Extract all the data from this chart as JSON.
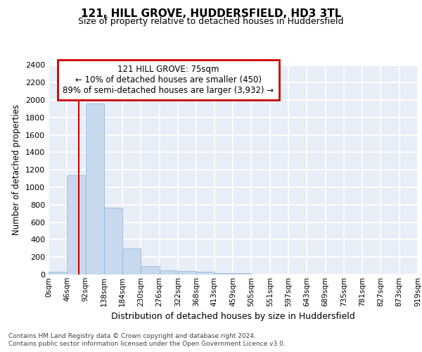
{
  "title": "121, HILL GROVE, HUDDERSFIELD, HD3 3TL",
  "subtitle": "Size of property relative to detached houses in Huddersfield",
  "xlabel": "Distribution of detached houses by size in Huddersfield",
  "ylabel": "Number of detached properties",
  "bar_color": "#c8d9ee",
  "bar_edge_color": "#8ab0d4",
  "background_color": "#e8eef8",
  "grid_color": "#ffffff",
  "red_line_x": 75,
  "annotation_text_line1": "121 HILL GROVE: 75sqm",
  "annotation_text_line2": "← 10% of detached houses are smaller (450)",
  "annotation_text_line3": "89% of semi-detached houses are larger (3,932) →",
  "annotation_box_color": "#ffffff",
  "annotation_box_edge": "#cc0000",
  "footer_line1": "Contains HM Land Registry data © Crown copyright and database right 2024.",
  "footer_line2": "Contains public sector information licensed under the Open Government Licence v3.0.",
  "bin_edges": [
    0,
    46,
    92,
    138,
    184,
    230,
    276,
    322,
    368,
    413,
    459,
    505,
    551,
    597,
    643,
    689,
    735,
    781,
    827,
    873,
    919
  ],
  "bar_heights": [
    35,
    1140,
    1960,
    770,
    300,
    100,
    45,
    40,
    35,
    20,
    20,
    0,
    0,
    0,
    0,
    0,
    0,
    0,
    0,
    0
  ],
  "ylim": [
    0,
    2400
  ],
  "yticks": [
    0,
    200,
    400,
    600,
    800,
    1000,
    1200,
    1400,
    1600,
    1800,
    2000,
    2200,
    2400
  ],
  "xlim": [
    0,
    919
  ],
  "xtick_labels": [
    "0sqm",
    "46sqm",
    "92sqm",
    "138sqm",
    "184sqm",
    "230sqm",
    "276sqm",
    "322sqm",
    "368sqm",
    "413sqm",
    "459sqm",
    "505sqm",
    "551sqm",
    "597sqm",
    "643sqm",
    "689sqm",
    "735sqm",
    "781sqm",
    "827sqm",
    "873sqm",
    "919sqm"
  ]
}
